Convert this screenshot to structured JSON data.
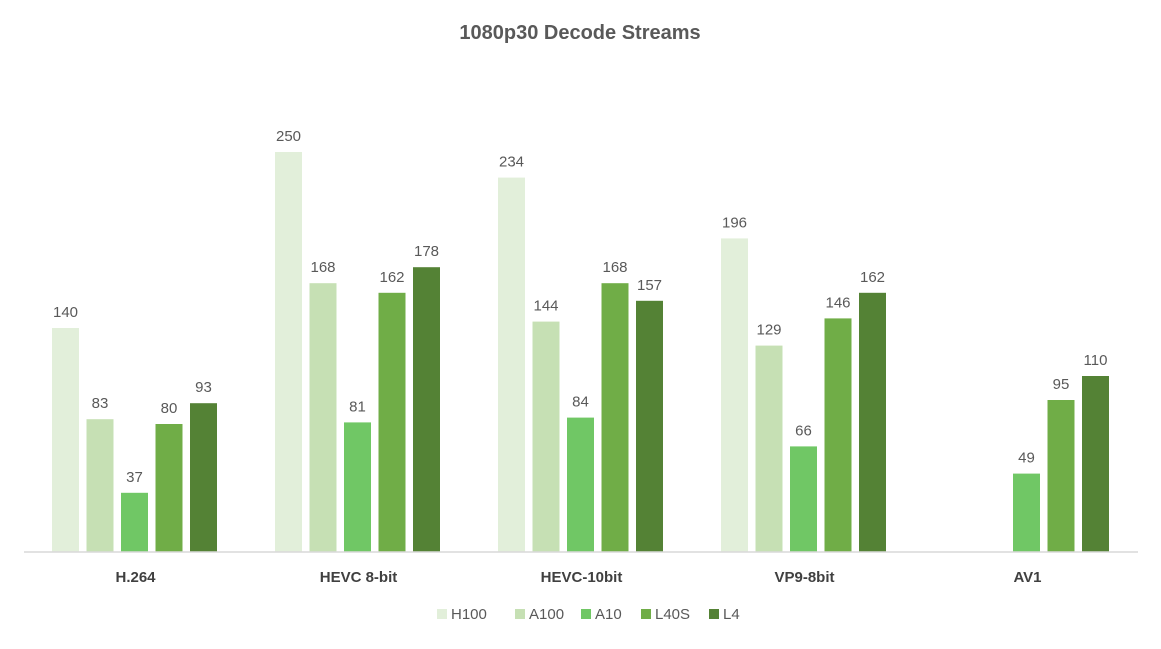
{
  "chart_data": {
    "type": "bar",
    "title": "1080p30 Decode Streams",
    "xlabel": "",
    "ylabel": "",
    "categories": [
      "H.264",
      "HEVC 8-bit",
      "HEVC-10bit",
      "VP9-8bit",
      "AV1"
    ],
    "series": [
      {
        "name": "H100",
        "color": "#e2efda",
        "values": [
          140,
          250,
          234,
          196,
          null
        ]
      },
      {
        "name": "A100",
        "color": "#c6e0b4",
        "values": [
          83,
          168,
          144,
          129,
          null
        ]
      },
      {
        "name": "A10",
        "color": "#70c765",
        "values": [
          37,
          81,
          84,
          66,
          49
        ]
      },
      {
        "name": "L40S",
        "color": "#70ad47",
        "values": [
          80,
          162,
          168,
          146,
          95
        ]
      },
      {
        "name": "L4",
        "color": "#548235",
        "values": [
          93,
          178,
          157,
          162,
          110
        ]
      }
    ],
    "ylim": [
      0,
      250
    ],
    "grid": false,
    "legend_position": "bottom",
    "data_labels": true
  }
}
